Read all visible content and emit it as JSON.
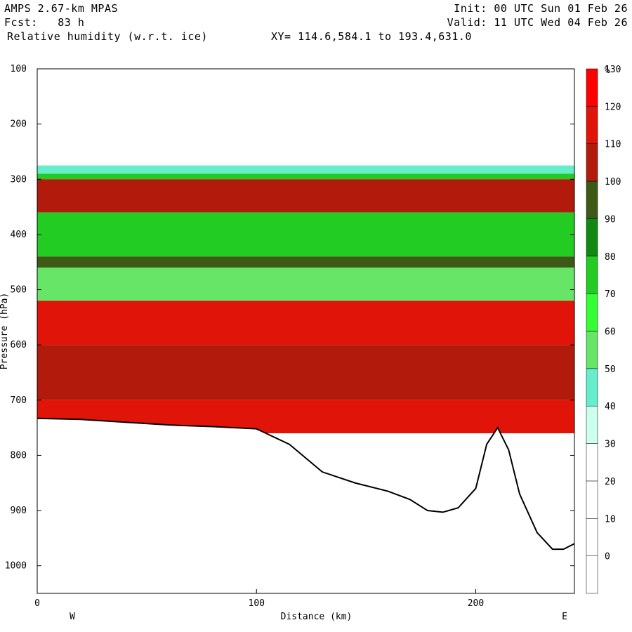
{
  "header": {
    "model": "AMPS 2.67-km MPAS",
    "fcst": "Fcst:   83 h",
    "field": "Relative humidity (w.r.t. ice)",
    "init": "Init: 00 UTC Sun 01 Feb 26",
    "valid": "Valid: 11 UTC Wed 04 Feb 26",
    "xy": "XY= 114.6,584.1 to 193.4,631.0"
  },
  "chart_data": {
    "type": "heatmap",
    "title": "Relative humidity (w.r.t. ice)",
    "xlabel": "Distance (km)",
    "ylabel": "Pressure (hPa)",
    "xlim": [
      0,
      245
    ],
    "ylim": [
      1050,
      100
    ],
    "x_ticks": [
      0,
      100,
      200
    ],
    "y_ticks": [
      100,
      200,
      300,
      400,
      500,
      600,
      700,
      800,
      900,
      1000
    ],
    "x_end_labels": {
      "left": "W",
      "right": "E"
    },
    "colorbar": {
      "unit": "%",
      "levels": [
        0,
        10,
        20,
        30,
        40,
        50,
        60,
        70,
        80,
        90,
        100,
        110,
        120,
        130
      ],
      "colors": [
        "#ffffff",
        "#ffffff",
        "#ffffff",
        "#ffffff",
        "#ccffee",
        "#66eecc",
        "#66e566",
        "#33ff33",
        "#22cc22",
        "#118811",
        "#3d5a15",
        "#b21a0c",
        "#e01408",
        "#ff0000"
      ]
    },
    "terrain_surface_pressure": {
      "x": [
        0,
        20,
        40,
        60,
        80,
        100,
        115,
        130,
        145,
        160,
        170,
        178,
        185,
        192,
        200,
        205,
        210,
        215,
        220,
        228,
        235,
        240,
        245
      ],
      "p": [
        733,
        735,
        740,
        745,
        748,
        752,
        780,
        830,
        850,
        865,
        880,
        900,
        903,
        895,
        860,
        780,
        750,
        790,
        870,
        940,
        970,
        970,
        960
      ]
    },
    "humidity_layers": [
      {
        "p_top": 275,
        "p_bottom": 290,
        "rh": 40
      },
      {
        "p_top": 290,
        "p_bottom": 300,
        "rh": 70
      },
      {
        "p_top": 300,
        "p_bottom": 360,
        "rh": 100
      },
      {
        "p_top": 360,
        "p_bottom": 440,
        "rh": 75
      },
      {
        "p_top": 440,
        "p_bottom": 460,
        "rh": 90
      },
      {
        "p_top": 460,
        "p_bottom": 520,
        "rh": 50
      },
      {
        "p_top": 520,
        "p_bottom": 600,
        "rh": 115
      },
      {
        "p_top": 600,
        "p_bottom": 700,
        "rh": 100
      },
      {
        "p_top": 700,
        "p_bottom": 760,
        "rh": 110
      }
    ]
  }
}
